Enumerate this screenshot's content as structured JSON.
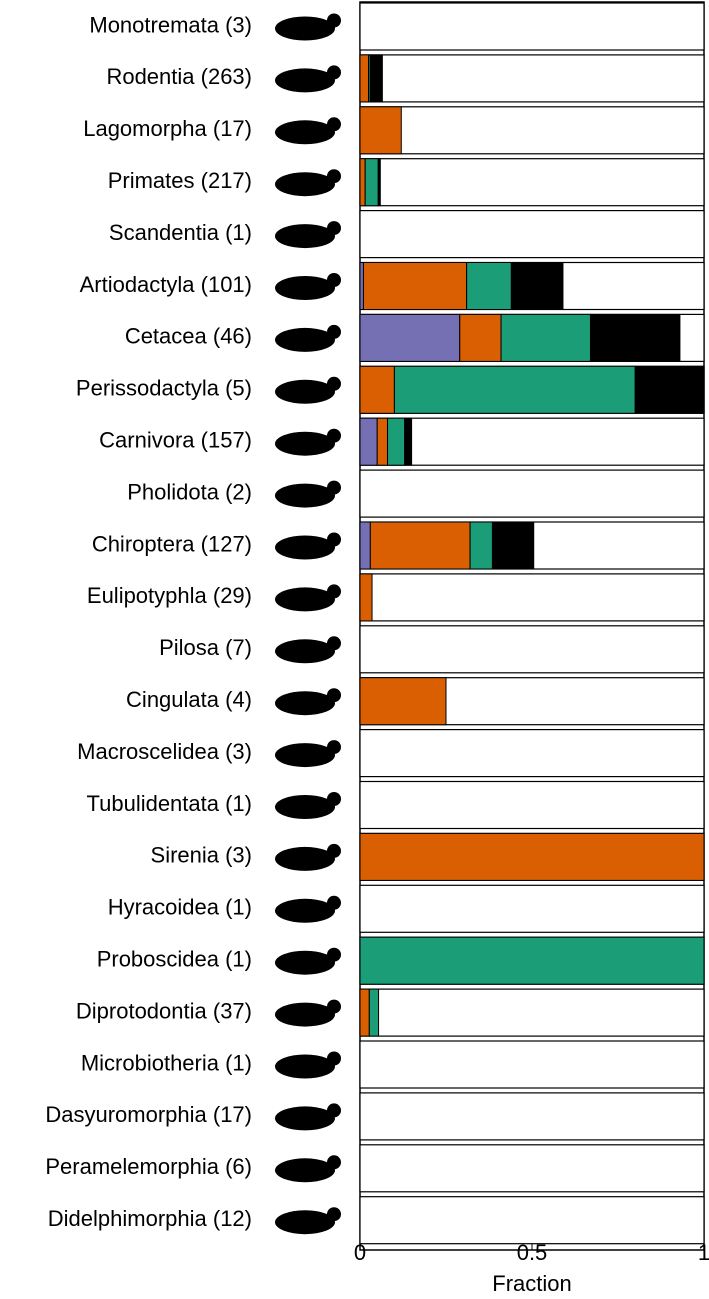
{
  "chart_data": {
    "type": "stacked_barh",
    "categories": [
      "Monotremata (3)",
      "Rodentia (263)",
      "Lagomorpha (17)",
      "Primates (217)",
      "Scandentia (1)",
      "Artiodactyla (101)",
      "Cetacea (46)",
      "Perissodactyla (5)",
      "Carnivora (157)",
      "Pholidota (2)",
      "Chiroptera (127)",
      "Eulipotyphla (29)",
      "Pilosa (7)",
      "Cingulata (4)",
      "Macroscelidea (3)",
      "Tubulidentata (1)",
      "Sirenia (3)",
      "Hyracoidea (1)",
      "Proboscidea (1)",
      "Diprotodontia (37)",
      "Microbiotheria (1)",
      "Dasyuromorphia (17)",
      "Peramelemorphia (6)",
      "Didelphimorphia (12)"
    ],
    "series": [
      {
        "color": "#7570b3",
        "values": [
          0,
          0,
          0,
          0,
          0,
          0.01,
          0.29,
          0,
          0.05,
          0,
          0.03,
          0,
          0,
          0,
          0,
          0,
          0,
          0,
          0,
          0,
          0,
          0,
          0,
          0
        ]
      },
      {
        "color": "#d95f02",
        "values": [
          0,
          0.025,
          0.12,
          0.015,
          0,
          0.3,
          0.12,
          0.1,
          0.03,
          0,
          0.29,
          0.035,
          0,
          0.25,
          0,
          0,
          1,
          0,
          0,
          0.027,
          0,
          0,
          0,
          0
        ]
      },
      {
        "color": "#1b9e77",
        "values": [
          0,
          0.005,
          0,
          0.038,
          0,
          0.13,
          0.26,
          0.7,
          0.05,
          0,
          0.065,
          0,
          0,
          0,
          0,
          0,
          0,
          0,
          1,
          0.027,
          0,
          0,
          0,
          0
        ]
      },
      {
        "color": "#000000",
        "values": [
          0,
          0.035,
          0,
          0.006,
          0,
          0.15,
          0.26,
          0.2,
          0.02,
          0,
          0.12,
          0,
          0,
          0,
          0,
          0,
          0,
          0,
          0,
          0,
          0,
          0,
          0,
          0
        ]
      }
    ],
    "xlim": [
      0,
      1
    ],
    "xticks": [
      0,
      0.5,
      1
    ],
    "xlabel": "Fraction"
  }
}
